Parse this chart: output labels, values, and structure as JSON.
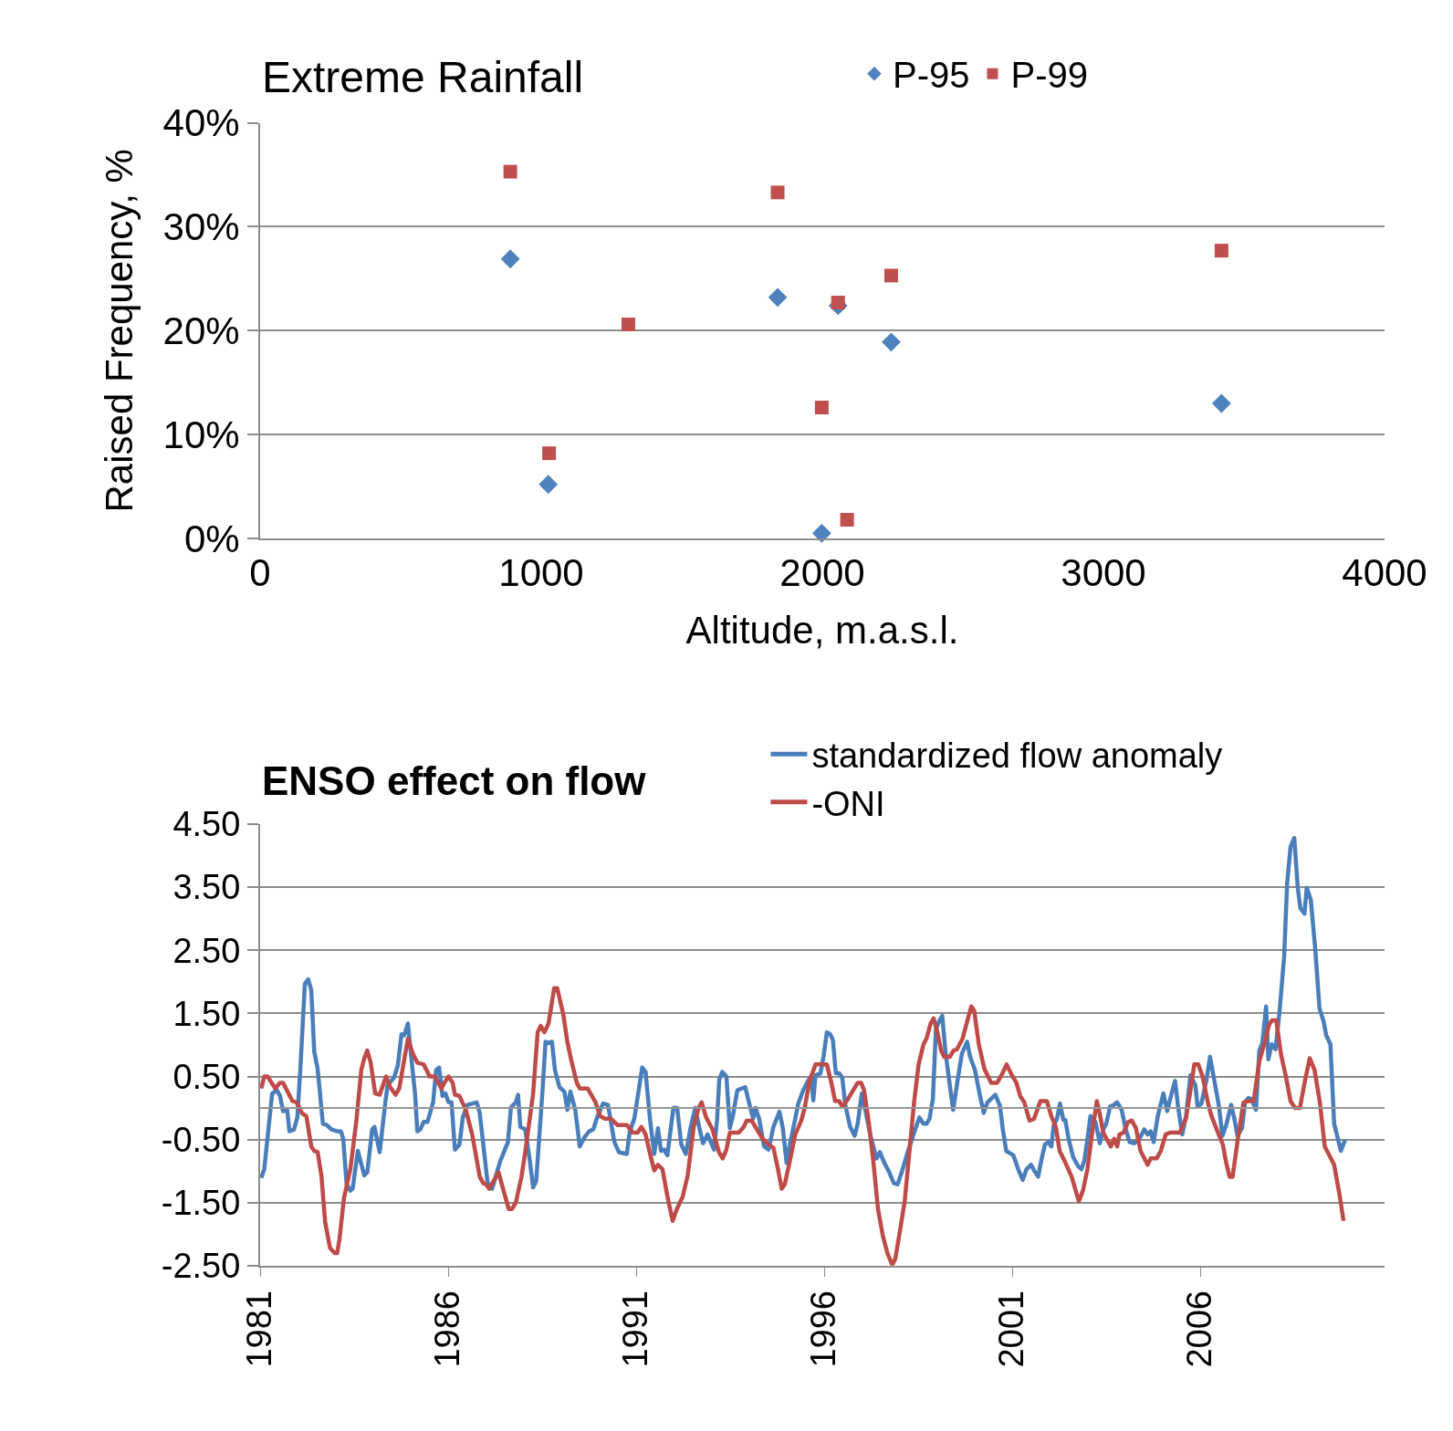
{
  "chart_data": [
    {
      "type": "scatter",
      "title": "Extreme Rainfall",
      "xlabel": "Altitude, m.a.s.l.",
      "ylabel": "Raised Frequency, %",
      "xlim": [
        0,
        4000
      ],
      "xticks": [
        0,
        1000,
        2000,
        3000,
        4000
      ],
      "ylim": [
        0,
        40
      ],
      "yticks": [
        {
          "value": 0,
          "label": "0%"
        },
        {
          "value": 10,
          "label": "10%"
        },
        {
          "value": 20,
          "label": "20%"
        },
        {
          "value": 30,
          "label": "30%"
        },
        {
          "value": 40,
          "label": "40%"
        }
      ],
      "grid": "y",
      "legend": "top right",
      "series": [
        {
          "name": "P-95",
          "color": "#4f81bd",
          "marker": "diamond",
          "x": [
            890,
            1025,
            1841,
            2056,
            2245,
            1998,
            3420
          ],
          "values": [
            26.9,
            5.2,
            23.2,
            22.4,
            18.9,
            0.5,
            13.0
          ]
        },
        {
          "name": "P-99",
          "color": "#c0504d",
          "marker": "square",
          "x": [
            890,
            1028,
            1310,
            1841,
            1998,
            2056,
            2088,
            2245,
            3420
          ],
          "values": [
            35.3,
            8.2,
            20.6,
            33.3,
            12.6,
            22.7,
            1.8,
            25.3,
            27.7
          ]
        }
      ]
    },
    {
      "type": "line",
      "title": "ENSO effect on flow",
      "xlim": [
        1981,
        2010.9
      ],
      "xticks": [
        1981,
        1986,
        1991,
        1996,
        2001,
        2006
      ],
      "ylim": [
        -2.5,
        4.5
      ],
      "yticks": [
        {
          "value": -2.5,
          "label": "-2.50"
        },
        {
          "value": -1.5,
          "label": "-1.50"
        },
        {
          "value": -0.5,
          "label": "-0.50"
        },
        {
          "value": 0.5,
          "label": "0.50"
        },
        {
          "value": 1.5,
          "label": "1.50"
        },
        {
          "value": 2.5,
          "label": "2.50"
        },
        {
          "value": 3.5,
          "label": "3.50"
        },
        {
          "value": 4.5,
          "label": "4.50"
        }
      ],
      "grid": "y",
      "legend": "top",
      "marker": "none",
      "line_style": "solid",
      "ref_lines": [
        {
          "axis": "y",
          "value": 0,
          "color": "#969696"
        }
      ],
      "series": [
        {
          "name": "standardized flow anomaly",
          "color": "#4a7ebb",
          "x": [
            1981.03,
            1981.11,
            1981.32,
            1981.45,
            1981.53,
            1981.61,
            1981.72,
            1981.78,
            1981.9,
            1981.99,
            1982.07,
            1982.19,
            1982.28,
            1982.36,
            1982.44,
            1982.53,
            1982.67,
            1982.77,
            1982.9,
            1983.06,
            1983.15,
            1983.21,
            1983.3,
            1983.4,
            1983.46,
            1983.6,
            1983.77,
            1983.85,
            1983.98,
            1984.04,
            1984.18,
            1984.33,
            1984.39,
            1984.56,
            1984.66,
            1984.76,
            1984.83,
            1984.93,
            1985.01,
            1985.12,
            1985.18,
            1985.26,
            1985.35,
            1985.45,
            1985.6,
            1985.68,
            1985.76,
            1985.85,
            1985.93,
            1986.01,
            1986.09,
            1986.18,
            1986.3,
            1986.39,
            1986.51,
            1986.65,
            1986.76,
            1986.84,
            1987.05,
            1987.17,
            1987.38,
            1987.59,
            1987.67,
            1987.8,
            1987.86,
            1987.92,
            1988.05,
            1988.17,
            1988.26,
            1988.34,
            1988.42,
            1988.51,
            1988.59,
            1988.67,
            1988.76,
            1988.84,
            1988.96,
            1989.09,
            1989.17,
            1989.25,
            1989.38,
            1989.5,
            1989.63,
            1989.75,
            1989.86,
            1989.96,
            1990.12,
            1990.25,
            1990.42,
            1990.54,
            1990.75,
            1990.83,
            1990.95,
            1991.16,
            1991.25,
            1991.37,
            1991.48,
            1991.58,
            1991.66,
            1991.74,
            1991.83,
            1991.91,
            1991.99,
            1992.09,
            1992.2,
            1992.32,
            1992.45,
            1992.57,
            1992.7,
            1992.78,
            1992.9,
            1993.07,
            1993.15,
            1993.21,
            1993.29,
            1993.4,
            1993.49,
            1993.57,
            1993.69,
            1993.9,
            1994.02,
            1994.11,
            1994.17,
            1994.27,
            1994.4,
            1994.52,
            1994.65,
            1994.81,
            1994.9,
            1995.0,
            1995.1,
            1995.23,
            1995.31,
            1995.44,
            1995.57,
            1995.65,
            1995.71,
            1995.77,
            1995.9,
            1995.98,
            1996.07,
            1996.16,
            1996.23,
            1996.31,
            1996.4,
            1996.48,
            1996.56,
            1996.69,
            1996.81,
            1996.89,
            1997.0,
            1997.1,
            1997.23,
            1997.39,
            1997.48,
            1997.6,
            1997.73,
            1997.85,
            1997.95,
            1998.06,
            1998.22,
            1998.39,
            1998.53,
            1998.64,
            1998.72,
            1998.8,
            1998.89,
            1998.97,
            1999.07,
            1999.14,
            1999.22,
            1999.34,
            1999.43,
            1999.55,
            1999.66,
            1999.8,
            1999.88,
            2000.01,
            2000.13,
            2000.24,
            2000.34,
            2000.55,
            2000.67,
            2000.75,
            2000.84,
            2001.03,
            2001.17,
            2001.28,
            2001.38,
            2001.5,
            2001.58,
            2001.69,
            2001.79,
            2001.87,
            2001.96,
            2002.04,
            2002.1,
            2002.19,
            2002.27,
            2002.36,
            2002.41,
            2002.5,
            2002.62,
            2002.75,
            2002.84,
            2002.92,
            2003.0,
            2003.08,
            2003.21,
            2003.33,
            2003.42,
            2003.5,
            2003.6,
            2003.71,
            2003.79,
            2003.91,
            2004.01,
            2004.12,
            2004.25,
            2004.41,
            2004.51,
            2004.6,
            2004.68,
            2004.76,
            2004.87,
            2005.02,
            2005.12,
            2005.23,
            2005.33,
            2005.41,
            2005.52,
            2005.62,
            2005.74,
            2005.87,
            2005.93,
            2006.03,
            2006.16,
            2006.26,
            2006.36,
            2006.49,
            2006.59,
            2006.69,
            2006.82,
            2006.9,
            2006.99,
            2007.11,
            2007.19,
            2007.28,
            2007.36,
            2007.48,
            2007.57,
            2007.65,
            2007.75,
            2007.81,
            2007.9,
            2008.0,
            2008.11,
            2008.23,
            2008.31,
            2008.4,
            2008.5,
            2008.59,
            2008.66,
            2008.77,
            2008.83,
            2008.94,
            2009.06,
            2009.17,
            2009.28,
            2009.35,
            2009.46,
            2009.56,
            2009.74,
            2009.85
          ],
          "values": [
            -1.11,
            -0.97,
            0.23,
            0.28,
            0.19,
            -0.05,
            -0.03,
            -0.37,
            -0.34,
            -0.15,
            0.62,
            1.97,
            2.04,
            1.87,
            0.89,
            0.62,
            -0.25,
            -0.27,
            -0.34,
            -0.37,
            -0.37,
            -0.49,
            -1.21,
            -1.31,
            -1.28,
            -0.68,
            -1.07,
            -1.02,
            -0.34,
            -0.3,
            -0.7,
            0.09,
            0.36,
            0.48,
            0.67,
            1.17,
            1.15,
            1.34,
            0.86,
            0.23,
            -0.37,
            -0.34,
            -0.22,
            -0.22,
            0.09,
            0.6,
            0.64,
            0.19,
            0.23,
            0.09,
            0.09,
            -0.66,
            -0.58,
            -0.15,
            0.05,
            0.07,
            0.09,
            -0.08,
            -1.19,
            -1.28,
            -0.85,
            -0.54,
            0.01,
            0.09,
            0.21,
            -0.3,
            -0.34,
            -0.83,
            -1.26,
            -1.16,
            -0.49,
            0.28,
            1.05,
            1.03,
            1.05,
            0.6,
            0.33,
            0.26,
            -0.03,
            0.26,
            -0.03,
            -0.61,
            -0.46,
            -0.37,
            -0.34,
            -0.15,
            0.07,
            0.05,
            -0.54,
            -0.7,
            -0.73,
            -0.37,
            -0.17,
            0.64,
            0.57,
            -0.19,
            -0.73,
            -0.32,
            -0.68,
            -0.66,
            -0.75,
            -0.37,
            0.0,
            0.0,
            -0.58,
            -0.73,
            -0.3,
            0.0,
            -0.37,
            -0.56,
            -0.42,
            -0.66,
            -0.19,
            0.45,
            0.57,
            0.5,
            -0.32,
            -0.13,
            0.28,
            0.33,
            0.04,
            -0.17,
            0.0,
            -0.17,
            -0.61,
            -0.66,
            -0.3,
            -0.06,
            -0.32,
            -0.87,
            -0.54,
            -0.17,
            0.07,
            0.28,
            0.43,
            0.5,
            0.12,
            0.52,
            0.55,
            0.81,
            1.2,
            1.17,
            1.08,
            0.55,
            0.55,
            0.48,
            0.05,
            -0.3,
            -0.44,
            -0.25,
            0.23,
            -0.05,
            -0.44,
            -0.8,
            -0.7,
            -0.87,
            -1.02,
            -1.19,
            -1.21,
            -1.02,
            -0.7,
            -0.39,
            -0.15,
            -0.25,
            -0.25,
            -0.17,
            0.14,
            1.25,
            1.39,
            1.46,
            0.91,
            0.36,
            -0.03,
            0.45,
            0.86,
            1.05,
            0.81,
            0.6,
            0.23,
            -0.08,
            0.09,
            0.21,
            0.04,
            -0.34,
            -0.68,
            -0.75,
            -0.99,
            -1.14,
            -0.97,
            -0.9,
            -0.99,
            -1.09,
            -0.78,
            -0.58,
            -0.54,
            -0.61,
            -0.28,
            -0.17,
            0.07,
            -0.19,
            -0.19,
            -0.49,
            -0.78,
            -0.92,
            -0.97,
            -0.83,
            -0.49,
            -0.13,
            -0.22,
            -0.56,
            -0.34,
            -0.25,
            0.02,
            0.05,
            0.09,
            -0.03,
            -0.32,
            -0.54,
            -0.56,
            -0.46,
            -0.34,
            -0.42,
            -0.37,
            -0.54,
            -0.13,
            0.23,
            -0.05,
            0.21,
            0.43,
            0.02,
            -0.42,
            -0.13,
            0.52,
            0.36,
            0.02,
            0.07,
            0.43,
            0.81,
            0.48,
            0.05,
            -0.44,
            -0.27,
            0.05,
            -0.15,
            -0.44,
            -0.32,
            0.09,
            0.16,
            0.14,
            -0.03,
            0.91,
            1.03,
            1.61,
            0.77,
            1.01,
            0.93,
            1.54,
            2.4,
            3.56,
            4.14,
            4.28,
            3.51,
            3.17,
            3.08,
            3.49,
            3.3,
            2.5,
            1.58,
            1.37,
            1.15,
            1.01,
            -0.25,
            -0.68,
            -0.51
          ]
        },
        {
          "name": "-ONI",
          "color": "#be4b48",
          "x": [
            1981.03,
            1981.11,
            1981.2,
            1981.4,
            1981.53,
            1981.61,
            1981.86,
            1981.97,
            1982.11,
            1982.23,
            1982.36,
            1982.44,
            1982.53,
            1982.63,
            1982.73,
            1982.86,
            1982.98,
            1983.05,
            1983.11,
            1983.23,
            1983.4,
            1983.56,
            1983.69,
            1983.77,
            1983.85,
            1983.94,
            1984.06,
            1984.18,
            1984.35,
            1984.46,
            1984.6,
            1984.7,
            1984.81,
            1984.93,
            1985.06,
            1985.18,
            1985.35,
            1985.51,
            1985.64,
            1985.82,
            1985.9,
            1986.01,
            1986.12,
            1986.18,
            1986.3,
            1986.47,
            1986.64,
            1986.84,
            1986.93,
            1987.01,
            1987.09,
            1987.34,
            1987.46,
            1987.61,
            1987.7,
            1987.8,
            1987.95,
            1988.05,
            1988.26,
            1988.38,
            1988.46,
            1988.56,
            1988.67,
            1988.82,
            1988.9,
            1989.06,
            1989.17,
            1989.28,
            1989.42,
            1989.5,
            1989.71,
            1989.92,
            1990.04,
            1990.17,
            1990.33,
            1990.5,
            1990.75,
            1990.91,
            1991.04,
            1991.14,
            1991.25,
            1991.37,
            1991.48,
            1991.58,
            1991.7,
            1991.83,
            1991.97,
            1992.07,
            1992.24,
            1992.37,
            1992.53,
            1992.66,
            1992.74,
            1992.86,
            1993.03,
            1993.2,
            1993.3,
            1993.4,
            1993.49,
            1993.73,
            1993.86,
            1993.94,
            1994.07,
            1994.19,
            1994.36,
            1994.52,
            1994.65,
            1994.77,
            1994.87,
            1994.95,
            1995.09,
            1995.23,
            1995.39,
            1995.48,
            1995.61,
            1995.77,
            1996.07,
            1996.19,
            1996.29,
            1996.4,
            1996.48,
            1996.6,
            1996.75,
            1996.89,
            1996.98,
            1997.06,
            1997.19,
            1997.31,
            1997.43,
            1997.56,
            1997.68,
            1997.81,
            1997.89,
            1998.02,
            1998.14,
            1998.26,
            1998.39,
            1998.51,
            1998.64,
            1998.72,
            1998.83,
            1998.91,
            1999.01,
            1999.11,
            1999.19,
            1999.34,
            1999.44,
            1999.53,
            1999.68,
            1999.8,
            1999.91,
            1999.99,
            2000.11,
            2000.26,
            2000.44,
            2000.6,
            2000.74,
            2000.85,
            2000.99,
            2001.11,
            2001.21,
            2001.32,
            2001.46,
            2001.58,
            2001.75,
            2001.92,
            2002.04,
            2002.16,
            2002.26,
            2002.4,
            2002.58,
            2002.77,
            2002.88,
            2003.0,
            2003.13,
            2003.25,
            2003.33,
            2003.42,
            2003.62,
            2003.71,
            2003.79,
            2003.85,
            2003.96,
            2004.08,
            2004.18,
            2004.29,
            2004.41,
            2004.6,
            2004.68,
            2004.84,
            2004.95,
            2005.08,
            2005.2,
            2005.45,
            2005.62,
            2005.74,
            2005.84,
            2005.95,
            2006.06,
            2006.2,
            2006.3,
            2006.47,
            2006.6,
            2006.69,
            2006.78,
            2006.86,
            2007.0,
            2007.15,
            2007.28,
            2007.42,
            2007.57,
            2007.72,
            2007.83,
            2007.91,
            2008.02,
            2008.15,
            2008.27,
            2008.4,
            2008.52,
            2008.65,
            2008.79,
            2008.91,
            2009.04,
            2009.18,
            2009.31,
            2009.56,
            2009.71,
            2009.81
          ],
          "values": [
            0.31,
            0.5,
            0.5,
            0.31,
            0.4,
            0.4,
            0.11,
            0.09,
            -0.08,
            -0.13,
            -0.61,
            -0.68,
            -0.7,
            -1.07,
            -1.81,
            -2.22,
            -2.3,
            -2.3,
            -2.08,
            -1.43,
            -0.97,
            -0.2,
            0.6,
            0.79,
            0.91,
            0.72,
            0.23,
            0.21,
            0.5,
            0.33,
            0.21,
            0.31,
            0.69,
            1.1,
            0.86,
            0.72,
            0.69,
            0.5,
            0.5,
            0.31,
            0.4,
            0.5,
            0.4,
            0.21,
            0.19,
            -0.03,
            -0.42,
            -1.09,
            -1.19,
            -1.21,
            -1.28,
            -1.02,
            -1.28,
            -1.6,
            -1.6,
            -1.5,
            -1.09,
            -0.7,
            0.23,
            1.2,
            1.3,
            1.2,
            1.34,
            1.9,
            1.9,
            1.49,
            1.05,
            0.74,
            0.4,
            0.31,
            0.31,
            0.09,
            -0.13,
            -0.17,
            -0.17,
            -0.27,
            -0.27,
            -0.39,
            -0.39,
            -0.3,
            -0.42,
            -0.73,
            -0.99,
            -0.9,
            -0.97,
            -1.4,
            -1.79,
            -1.62,
            -1.4,
            -1.07,
            -0.3,
            0.0,
            0.09,
            -0.15,
            -0.34,
            -0.7,
            -0.8,
            -0.66,
            -0.39,
            -0.39,
            -0.3,
            -0.2,
            -0.2,
            -0.32,
            -0.49,
            -0.58,
            -0.63,
            -0.97,
            -1.28,
            -1.21,
            -0.83,
            -0.42,
            -0.2,
            0.0,
            0.43,
            0.69,
            0.69,
            0.4,
            0.11,
            0.11,
            0.02,
            0.11,
            0.26,
            0.4,
            0.4,
            0.28,
            -0.25,
            -0.87,
            -1.6,
            -2.03,
            -2.3,
            -2.49,
            -2.39,
            -1.93,
            -1.48,
            -0.73,
            0.09,
            0.69,
            1.01,
            1.1,
            1.34,
            1.42,
            1.2,
            0.91,
            0.81,
            0.81,
            0.91,
            0.93,
            1.1,
            1.37,
            1.61,
            1.54,
            1.01,
            0.62,
            0.4,
            0.4,
            0.55,
            0.69,
            0.52,
            0.4,
            0.19,
            0.09,
            -0.2,
            -0.17,
            0.11,
            0.11,
            -0.13,
            -0.3,
            -0.68,
            -0.85,
            -1.09,
            -1.48,
            -1.31,
            -0.97,
            -0.37,
            0.11,
            -0.1,
            -0.39,
            -0.61,
            -0.49,
            -0.61,
            -0.42,
            -0.39,
            -0.22,
            -0.2,
            -0.32,
            -0.68,
            -0.9,
            -0.8,
            -0.8,
            -0.68,
            -0.42,
            -0.39,
            -0.39,
            -0.17,
            0.28,
            0.69,
            0.69,
            0.5,
            0.09,
            -0.13,
            -0.39,
            -0.58,
            -0.87,
            -1.09,
            -1.09,
            -0.49,
            0.09,
            0.11,
            0.11,
            0.74,
            1.05,
            1.32,
            1.39,
            1.39,
            0.84,
            0.52,
            0.11,
            0.0,
            0.0,
            0.45,
            0.79,
            0.6,
            0.09,
            -0.61,
            -0.9,
            -1.4,
            -1.79
          ]
        }
      ]
    }
  ]
}
